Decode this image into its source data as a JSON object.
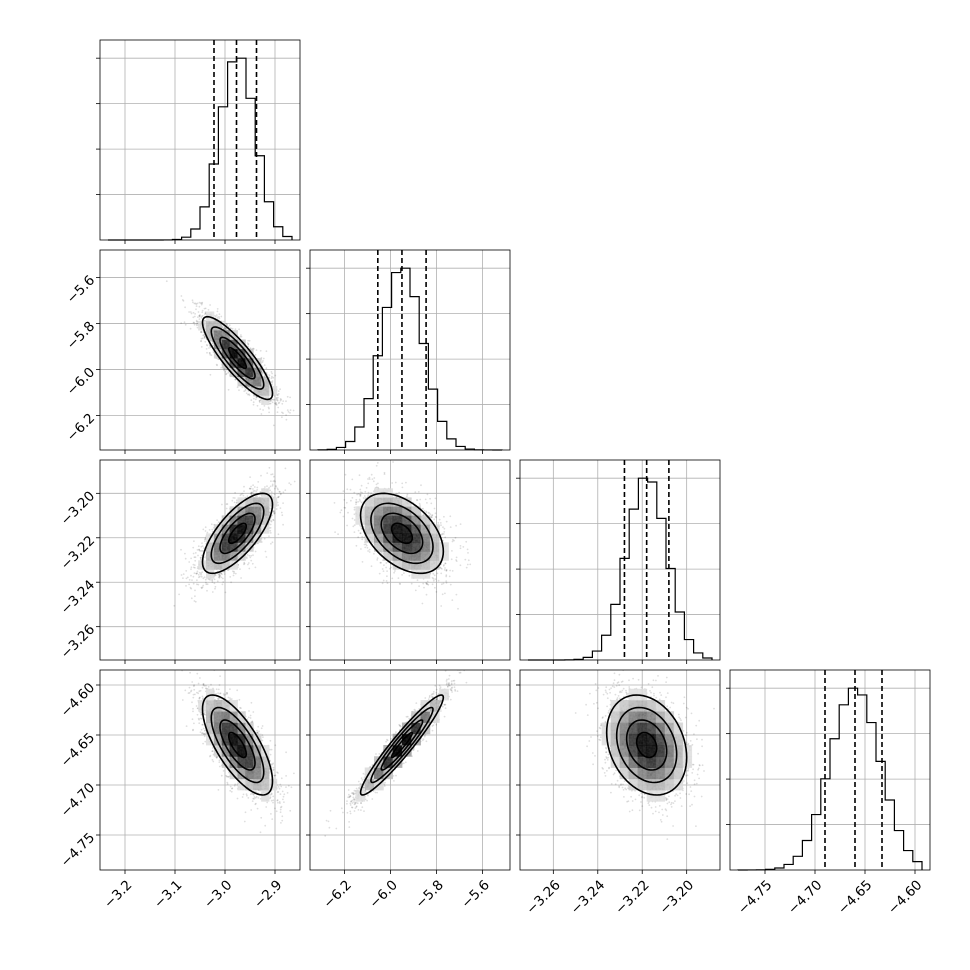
{
  "chart_data": {
    "type": "corner",
    "parameters": [
      {
        "range": [
          -3.25,
          -2.85
        ],
        "mean": -2.975,
        "sd": 0.035,
        "quantiles": [
          -3.022,
          -2.977,
          -2.937
        ],
        "ticks": [
          -3.2,
          -3.1,
          -3.0,
          -2.9
        ],
        "tick_labels": [
          "−3.2",
          "−3.1",
          "−3.0",
          "−2.9"
        ]
      },
      {
        "range": [
          -6.35,
          -5.48
        ],
        "mean": -5.95,
        "sd": 0.09,
        "quantiles": [
          -6.055,
          -5.95,
          -5.845
        ],
        "ticks": [
          -6.2,
          -6.0,
          -5.8,
          -5.6
        ],
        "tick_labels": [
          "−6.2",
          "−6.0",
          "−5.8",
          "−5.6"
        ]
      },
      {
        "range": [
          -3.275,
          -3.185
        ],
        "mean": -3.218,
        "sd": 0.009,
        "quantiles": [
          -3.228,
          -3.218,
          -3.208
        ],
        "ticks": [
          -3.26,
          -3.24,
          -3.22,
          -3.2
        ],
        "tick_labels": [
          "−3.26",
          "−3.24",
          "−3.22",
          "−3.20"
        ]
      },
      {
        "range": [
          -4.785,
          -4.585
        ],
        "mean": -4.66,
        "sd": 0.025,
        "quantiles": [
          -4.69,
          -4.66,
          -4.633
        ],
        "ticks": [
          -4.75,
          -4.7,
          -4.65,
          -4.6
        ],
        "tick_labels": [
          "−4.75",
          "−4.70",
          "−4.65",
          "−4.60"
        ]
      }
    ],
    "correlations": [
      [
        1.0,
        -0.86,
        0.72,
        -0.72
      ],
      [
        -0.86,
        1.0,
        -0.45,
        0.95
      ],
      [
        0.72,
        -0.45,
        1.0,
        -0.25
      ],
      [
        -0.72,
        0.95,
        -0.25,
        1.0
      ]
    ],
    "histogram_bins": 20,
    "samples_per_panel": 2600,
    "grid": true,
    "colors": {
      "points": "#000000",
      "lines": "#000000",
      "grid": "#b0b0b0"
    }
  }
}
